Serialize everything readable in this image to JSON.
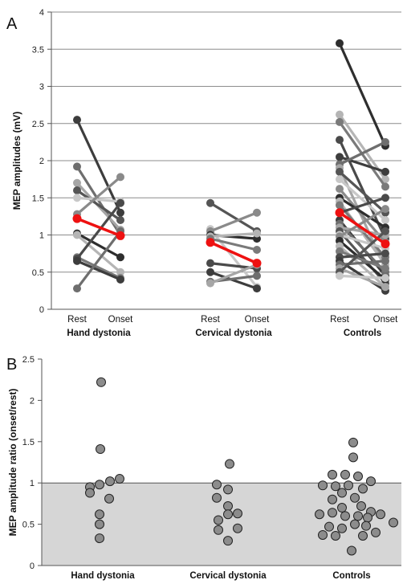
{
  "panels": {
    "a_letter": "A",
    "b_letter": "B"
  },
  "colors": {
    "mean_line": "#ee1111",
    "grid": "#8c8c8c",
    "shade": "#d6d6d6",
    "dot_fill": "#8c8c8c",
    "dot_stroke": "#222222"
  },
  "chart_data": [
    {
      "type": "line",
      "ylabel": "MEP amplitudes (mV)",
      "ylim": [
        0,
        4
      ],
      "yticks": [
        "0",
        "0.5",
        "1",
        "1.5",
        "2",
        "2.5",
        "3",
        "3.5",
        "4"
      ],
      "grid": true,
      "groups": [
        {
          "name": "Hand dystonia",
          "conditions": [
            "Rest",
            "Onset"
          ],
          "pairs": [
            [
              2.55,
              1.3
            ],
            [
              1.92,
              1.0
            ],
            [
              1.7,
              1.07
            ],
            [
              1.6,
              1.2
            ],
            [
              1.5,
              1.45
            ],
            [
              1.28,
              1.78
            ],
            [
              1.02,
              0.7
            ],
            [
              1.0,
              0.5
            ],
            [
              0.7,
              0.42
            ],
            [
              0.68,
              1.43
            ],
            [
              0.65,
              0.4
            ],
            [
              0.28,
              1.05
            ]
          ],
          "mean": [
            1.22,
            0.99
          ]
        },
        {
          "name": "Cervical dystonia",
          "conditions": [
            "Rest",
            "Onset"
          ],
          "pairs": [
            [
              1.43,
              1.05
            ],
            [
              1.08,
              0.3
            ],
            [
              1.05,
              1.3
            ],
            [
              1.0,
              0.95
            ],
            [
              0.98,
              1.02
            ],
            [
              0.95,
              0.8
            ],
            [
              0.62,
              0.55
            ],
            [
              0.5,
              0.28
            ],
            [
              0.37,
              0.45
            ],
            [
              0.35,
              0.6
            ]
          ],
          "mean": [
            0.9,
            0.62
          ]
        },
        {
          "name": "Controls",
          "conditions": [
            "Rest",
            "Onset"
          ],
          "pairs": [
            [
              3.58,
              2.2
            ],
            [
              2.62,
              1.75
            ],
            [
              2.52,
              1.65
            ],
            [
              2.28,
              0.95
            ],
            [
              2.05,
              1.85
            ],
            [
              1.95,
              2.25
            ],
            [
              1.9,
              0.55
            ],
            [
              1.85,
              1.3
            ],
            [
              1.75,
              1.2
            ],
            [
              1.62,
              0.9
            ],
            [
              1.5,
              1.1
            ],
            [
              1.45,
              0.6
            ],
            [
              1.4,
              0.7
            ],
            [
              1.3,
              1.5
            ],
            [
              1.2,
              0.45
            ],
            [
              1.15,
              0.5
            ],
            [
              1.1,
              1.0
            ],
            [
              1.05,
              0.35
            ],
            [
              1.0,
              0.82
            ],
            [
              0.98,
              1.35
            ],
            [
              0.92,
              0.4
            ],
            [
              0.85,
              0.3
            ],
            [
              0.78,
              0.55
            ],
            [
              0.7,
              0.75
            ],
            [
              0.65,
              0.25
            ],
            [
              0.6,
              0.65
            ],
            [
              0.55,
              0.3
            ],
            [
              0.5,
              1.05
            ],
            [
              0.45,
              0.42
            ]
          ],
          "mean": [
            1.3,
            0.88
          ]
        }
      ]
    },
    {
      "type": "scatter",
      "ylabel": "MEP amplitude ratio (onset/rest)",
      "ylim": [
        0,
        2.5
      ],
      "yticks": [
        "0",
        "0.5",
        "1",
        "1.5",
        "2",
        "2.5"
      ],
      "shaded_below": 1,
      "categories": [
        "Hand dystonia",
        "Cervical dystonia",
        "Controls"
      ],
      "points": [
        [
          {
            "dx": -2,
            "y": 2.22
          },
          {
            "dx": -3,
            "y": 1.41
          },
          {
            "dx": -4,
            "y": 0.98
          },
          {
            "dx": -16,
            "y": 0.95
          },
          {
            "dx": 9,
            "y": 1.02
          },
          {
            "dx": 21,
            "y": 1.05
          },
          {
            "dx": -16,
            "y": 0.88
          },
          {
            "dx": 8,
            "y": 0.81
          },
          {
            "dx": -4,
            "y": 0.62
          },
          {
            "dx": -4,
            "y": 0.5
          },
          {
            "dx": -4,
            "y": 0.33
          }
        ],
        [
          {
            "dx": 2,
            "y": 1.23
          },
          {
            "dx": -14,
            "y": 0.98
          },
          {
            "dx": 0,
            "y": 0.92
          },
          {
            "dx": -14,
            "y": 0.82
          },
          {
            "dx": 0,
            "y": 0.72
          },
          {
            "dx": 12,
            "y": 0.63
          },
          {
            "dx": -12,
            "y": 0.55
          },
          {
            "dx": 0,
            "y": 0.62
          },
          {
            "dx": 12,
            "y": 0.45
          },
          {
            "dx": -12,
            "y": 0.43
          },
          {
            "dx": 0,
            "y": 0.3
          }
        ],
        [
          {
            "dx": 2,
            "y": 1.49
          },
          {
            "dx": 2,
            "y": 1.31
          },
          {
            "dx": -24,
            "y": 1.1
          },
          {
            "dx": -8,
            "y": 1.1
          },
          {
            "dx": 8,
            "y": 1.08
          },
          {
            "dx": 24,
            "y": 1.02
          },
          {
            "dx": -36,
            "y": 0.97
          },
          {
            "dx": -20,
            "y": 0.96
          },
          {
            "dx": -4,
            "y": 0.97
          },
          {
            "dx": 14,
            "y": 0.93
          },
          {
            "dx": -12,
            "y": 0.88
          },
          {
            "dx": 4,
            "y": 0.82
          },
          {
            "dx": -24,
            "y": 0.8
          },
          {
            "dx": 12,
            "y": 0.72
          },
          {
            "dx": -12,
            "y": 0.7
          },
          {
            "dx": 24,
            "y": 0.65
          },
          {
            "dx": -40,
            "y": 0.62
          },
          {
            "dx": -24,
            "y": 0.64
          },
          {
            "dx": -8,
            "y": 0.6
          },
          {
            "dx": 8,
            "y": 0.6
          },
          {
            "dx": 20,
            "y": 0.58
          },
          {
            "dx": 36,
            "y": 0.62
          },
          {
            "dx": 52,
            "y": 0.52
          },
          {
            "dx": -28,
            "y": 0.47
          },
          {
            "dx": -12,
            "y": 0.45
          },
          {
            "dx": 4,
            "y": 0.5
          },
          {
            "dx": 18,
            "y": 0.48
          },
          {
            "dx": -36,
            "y": 0.37
          },
          {
            "dx": -20,
            "y": 0.36
          },
          {
            "dx": 14,
            "y": 0.36
          },
          {
            "dx": 30,
            "y": 0.4
          },
          {
            "dx": 0,
            "y": 0.18
          }
        ]
      ]
    }
  ]
}
